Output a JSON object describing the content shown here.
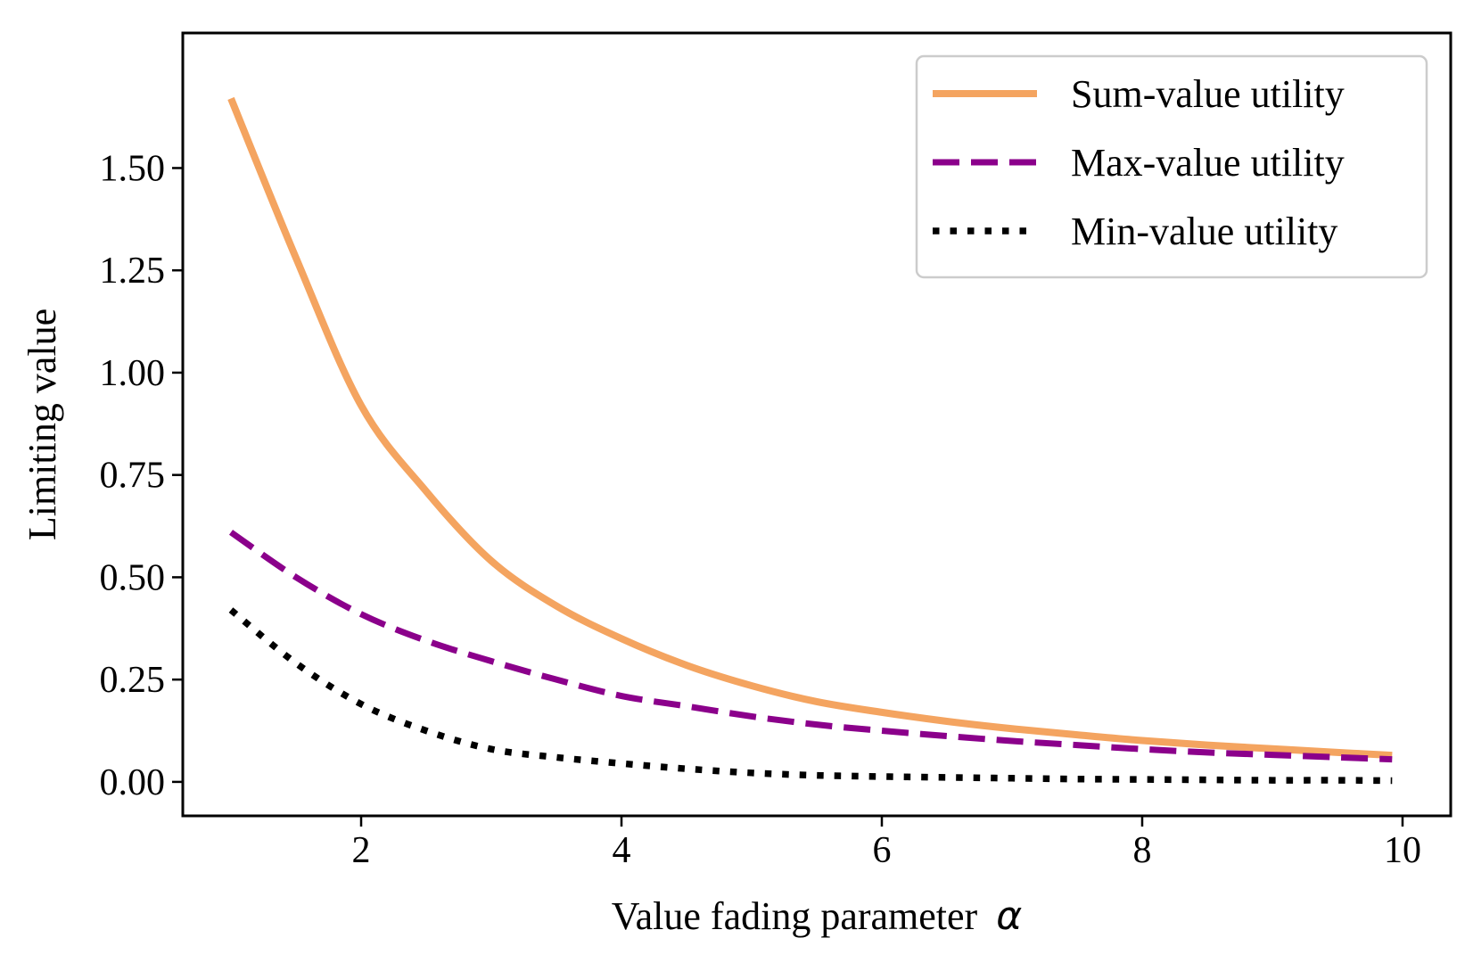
{
  "chart_data": {
    "type": "line",
    "title": "",
    "xlabel": "Value fading parameter",
    "xlabel_symbol": "α",
    "ylabel": "Limiting value",
    "xlim": [
      0.63,
      10.37
    ],
    "ylim": [
      -0.083,
      1.83
    ],
    "xticks": [
      2,
      4,
      6,
      8,
      10
    ],
    "xtick_labels": [
      "2",
      "4",
      "6",
      "8",
      "10"
    ],
    "yticks": [
      0.0,
      0.25,
      0.5,
      0.75,
      1.0,
      1.25,
      1.5
    ],
    "ytick_labels": [
      "0.00",
      "0.25",
      "0.50",
      "0.75",
      "1.00",
      "1.25",
      "1.50"
    ],
    "grid": false,
    "legend_position": "top-right",
    "x": [
      1.0,
      1.5,
      2.0,
      2.5,
      3.0,
      3.5,
      4.0,
      4.5,
      5.0,
      5.5,
      6.0,
      6.5,
      7.0,
      7.5,
      8.0,
      8.5,
      9.0,
      9.5,
      9.92
    ],
    "series": [
      {
        "name": "Sum-value utility",
        "style": "solid",
        "color": "#f4a460",
        "values": [
          1.67,
          1.28,
          0.92,
          0.71,
          0.54,
          0.43,
          0.35,
          0.285,
          0.235,
          0.196,
          0.17,
          0.148,
          0.13,
          0.115,
          0.101,
          0.09,
          0.081,
          0.072,
          0.065
        ]
      },
      {
        "name": "Max-value utility",
        "style": "dashed",
        "color": "#8b008b",
        "values": [
          0.61,
          0.5,
          0.41,
          0.345,
          0.295,
          0.25,
          0.21,
          0.185,
          0.16,
          0.14,
          0.125,
          0.112,
          0.1,
          0.09,
          0.08,
          0.072,
          0.066,
          0.06,
          0.055
        ]
      },
      {
        "name": "Min-value utility",
        "style": "dotted",
        "color": "#000000",
        "values": [
          0.42,
          0.29,
          0.19,
          0.125,
          0.08,
          0.06,
          0.045,
          0.032,
          0.022,
          0.016,
          0.013,
          0.011,
          0.009,
          0.007,
          0.006,
          0.005,
          0.004,
          0.004,
          0.003
        ]
      }
    ]
  }
}
